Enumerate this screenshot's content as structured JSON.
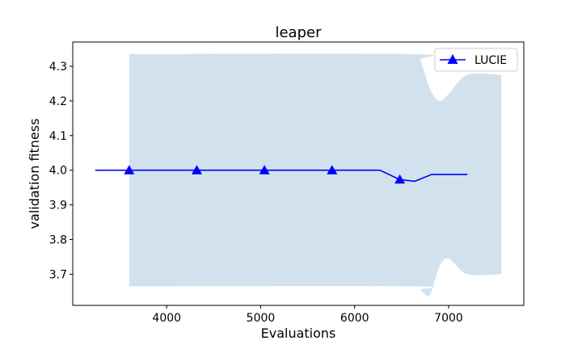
{
  "chart_data": {
    "type": "line",
    "title": "leaper",
    "xlabel": "Evaluations",
    "ylabel": "validation fitness",
    "xlim": [
      3000,
      7800
    ],
    "ylim": [
      3.61,
      4.37
    ],
    "xticks": [
      4000,
      5000,
      6000,
      7000
    ],
    "xtick_labels": [
      "4000",
      "5000",
      "6000",
      "7000"
    ],
    "yticks": [
      3.7,
      3.8,
      3.9,
      4.0,
      4.1,
      4.2,
      4.3
    ],
    "ytick_labels": [
      "3.7",
      "3.8",
      "3.9",
      "4.0",
      "4.1",
      "4.2",
      "4.3"
    ],
    "grid": false,
    "legend": {
      "placement": "top-right"
    },
    "colors": {
      "line": "#0000ff",
      "band": "#d1e2ee",
      "frame": "#000000"
    },
    "series": [
      {
        "name": "LUCIE",
        "marker": "triangle-up",
        "x": [
          3240,
          3600,
          4320,
          5040,
          5760,
          6270,
          6480,
          6640,
          6820,
          7200
        ],
        "y": [
          4.0,
          4.0,
          4.0,
          4.0,
          4.0,
          4.0,
          3.973,
          3.968,
          3.988,
          3.988
        ],
        "marker_x": [
          3600,
          4320,
          5040,
          5760,
          6480
        ],
        "marker_y": [
          4.0,
          4.0,
          4.0,
          4.0,
          3.973
        ],
        "band": {
          "x": [
            3600,
            6600,
            6700,
            6800,
            6900,
            7000,
            7200,
            7560
          ],
          "upper": [
            4.335,
            4.335,
            4.315,
            4.235,
            4.2,
            4.22,
            4.275,
            4.275
          ],
          "lower": [
            3.665,
            3.665,
            3.655,
            3.64,
            3.72,
            3.745,
            3.7,
            3.7
          ]
        }
      }
    ]
  }
}
